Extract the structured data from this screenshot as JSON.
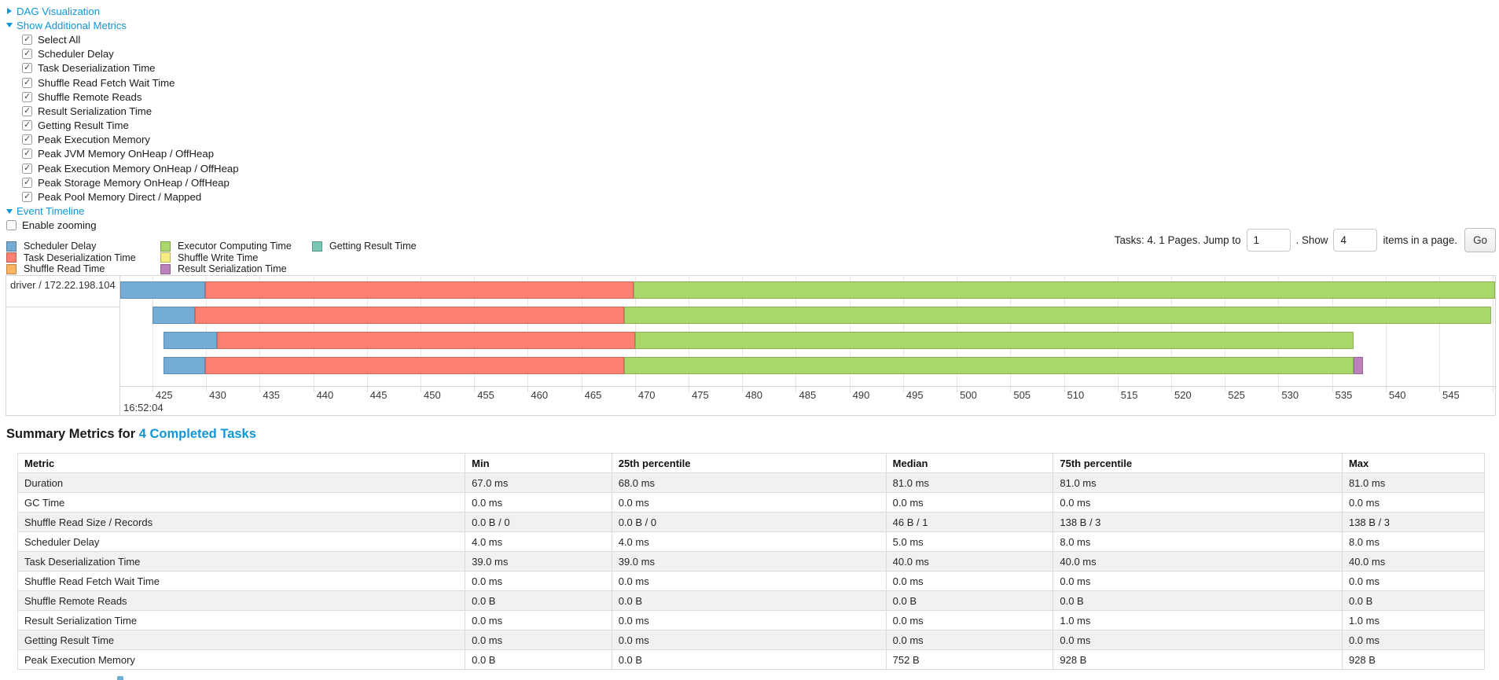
{
  "colors": {
    "link": "#1196d6",
    "scheduler_delay": "#74ACD5",
    "task_deserialization": "#FB8072",
    "shuffle_read": "#FDB462",
    "executor_computing": "#AAD76A",
    "shuffle_write": "#F6EC82",
    "result_serialization": "#BC80BD",
    "getting_result": "#79C7B7"
  },
  "controls": {
    "dag": {
      "label": "DAG Visualization",
      "state": "collapsed"
    },
    "metrics_toggle": {
      "label": "Show Additional Metrics",
      "state": "expanded"
    },
    "checkboxes": [
      {
        "label": "Select All",
        "checked": true
      },
      {
        "label": "Scheduler Delay",
        "checked": true
      },
      {
        "label": "Task Deserialization Time",
        "checked": true
      },
      {
        "label": "Shuffle Read Fetch Wait Time",
        "checked": true
      },
      {
        "label": "Shuffle Remote Reads",
        "checked": true
      },
      {
        "label": "Result Serialization Time",
        "checked": true
      },
      {
        "label": "Getting Result Time",
        "checked": true
      },
      {
        "label": "Peak Execution Memory",
        "checked": true
      },
      {
        "label": "Peak JVM Memory OnHeap / OffHeap",
        "checked": true
      },
      {
        "label": "Peak Execution Memory OnHeap / OffHeap",
        "checked": true
      },
      {
        "label": "Peak Storage Memory OnHeap / OffHeap",
        "checked": true
      },
      {
        "label": "Peak Pool Memory Direct / Mapped",
        "checked": true
      }
    ],
    "event_timeline": {
      "label": "Event Timeline",
      "state": "expanded"
    },
    "enable_zooming": {
      "label": "Enable zooming",
      "checked": false
    }
  },
  "legend": [
    {
      "label": "Scheduler Delay",
      "key": "scheduler_delay",
      "col": 0,
      "row": 0
    },
    {
      "label": "Task Deserialization Time",
      "key": "task_deserialization",
      "col": 0,
      "row": 1
    },
    {
      "label": "Shuffle Read Time",
      "key": "shuffle_read",
      "col": 0,
      "row": 2
    },
    {
      "label": "Executor Computing Time",
      "key": "executor_computing",
      "col": 1,
      "row": 0
    },
    {
      "label": "Shuffle Write Time",
      "key": "shuffle_write",
      "col": 1,
      "row": 1
    },
    {
      "label": "Result Serialization Time",
      "key": "result_serialization",
      "col": 1,
      "row": 2
    },
    {
      "label": "Getting Result Time",
      "key": "getting_result",
      "col": 2,
      "row": 0
    }
  ],
  "pagination": {
    "prefix_text": "Tasks: 4. 1 Pages. Jump to",
    "jump_value": "1",
    "show_text": ". Show",
    "show_value": "4",
    "suffix_text": "items in a page.",
    "go_label": "Go"
  },
  "timeline": {
    "group_label": "driver / 172.22.198.104",
    "axis": {
      "view_start": 422.0,
      "view_end": 550.2,
      "tick_start": 425,
      "tick_end": 550,
      "tick_step": 5,
      "major_label": "16:52:04"
    },
    "rows": [
      {
        "segments": [
          {
            "type": "scheduler_delay",
            "start": 422.0,
            "end": 429.9
          },
          {
            "type": "task_deserialization",
            "start": 429.9,
            "end": 469.9
          },
          {
            "type": "executor_computing",
            "start": 469.9,
            "end": 550.4
          }
        ]
      },
      {
        "segments": [
          {
            "type": "scheduler_delay",
            "start": 425.0,
            "end": 429.0
          },
          {
            "type": "task_deserialization",
            "start": 429.0,
            "end": 469.0
          },
          {
            "type": "executor_computing",
            "start": 469.0,
            "end": 549.8
          }
        ]
      },
      {
        "segments": [
          {
            "type": "scheduler_delay",
            "start": 426.0,
            "end": 431.0
          },
          {
            "type": "task_deserialization",
            "start": 431.0,
            "end": 470.0
          },
          {
            "type": "executor_computing",
            "start": 470.0,
            "end": 537.0
          }
        ]
      },
      {
        "segments": [
          {
            "type": "scheduler_delay",
            "start": 426.0,
            "end": 429.9
          },
          {
            "type": "task_deserialization",
            "start": 429.9,
            "end": 469.0
          },
          {
            "type": "executor_computing",
            "start": 469.0,
            "end": 537.0
          },
          {
            "type": "result_serialization",
            "start": 537.0,
            "end": 537.9
          }
        ]
      }
    ]
  },
  "summary": {
    "title_prefix": "Summary Metrics for ",
    "title_link": "4 Completed Tasks",
    "table": {
      "headers": [
        "Metric",
        "Min",
        "25th percentile",
        "Median",
        "75th percentile",
        "Max"
      ],
      "rows": [
        {
          "metric": "Duration",
          "values": [
            "67.0 ms",
            "68.0 ms",
            "81.0 ms",
            "81.0 ms",
            "81.0 ms"
          ]
        },
        {
          "metric": "GC Time",
          "values": [
            "0.0 ms",
            "0.0 ms",
            "0.0 ms",
            "0.0 ms",
            "0.0 ms"
          ]
        },
        {
          "metric": "Shuffle Read Size / Records",
          "values": [
            "0.0 B / 0",
            "0.0 B / 0",
            "46 B / 1",
            "138 B / 3",
            "138 B / 3"
          ]
        },
        {
          "metric": "Scheduler Delay",
          "values": [
            "4.0 ms",
            "4.0 ms",
            "5.0 ms",
            "8.0 ms",
            "8.0 ms"
          ]
        },
        {
          "metric": "Task Deserialization Time",
          "values": [
            "39.0 ms",
            "39.0 ms",
            "40.0 ms",
            "40.0 ms",
            "40.0 ms"
          ]
        },
        {
          "metric": "Shuffle Read Fetch Wait Time",
          "values": [
            "0.0 ms",
            "0.0 ms",
            "0.0 ms",
            "0.0 ms",
            "0.0 ms"
          ]
        },
        {
          "metric": "Shuffle Remote Reads",
          "values": [
            "0.0 B",
            "0.0 B",
            "0.0 B",
            "0.0 B",
            "0.0 B"
          ]
        },
        {
          "metric": "Result Serialization Time",
          "values": [
            "0.0 ms",
            "0.0 ms",
            "0.0 ms",
            "1.0 ms",
            "1.0 ms"
          ]
        },
        {
          "metric": "Getting Result Time",
          "values": [
            "0.0 ms",
            "0.0 ms",
            "0.0 ms",
            "0.0 ms",
            "0.0 ms"
          ]
        },
        {
          "metric": "Peak Execution Memory",
          "values": [
            "0.0 B",
            "0.0 B",
            "752 B",
            "928 B",
            "928 B"
          ]
        }
      ]
    }
  }
}
